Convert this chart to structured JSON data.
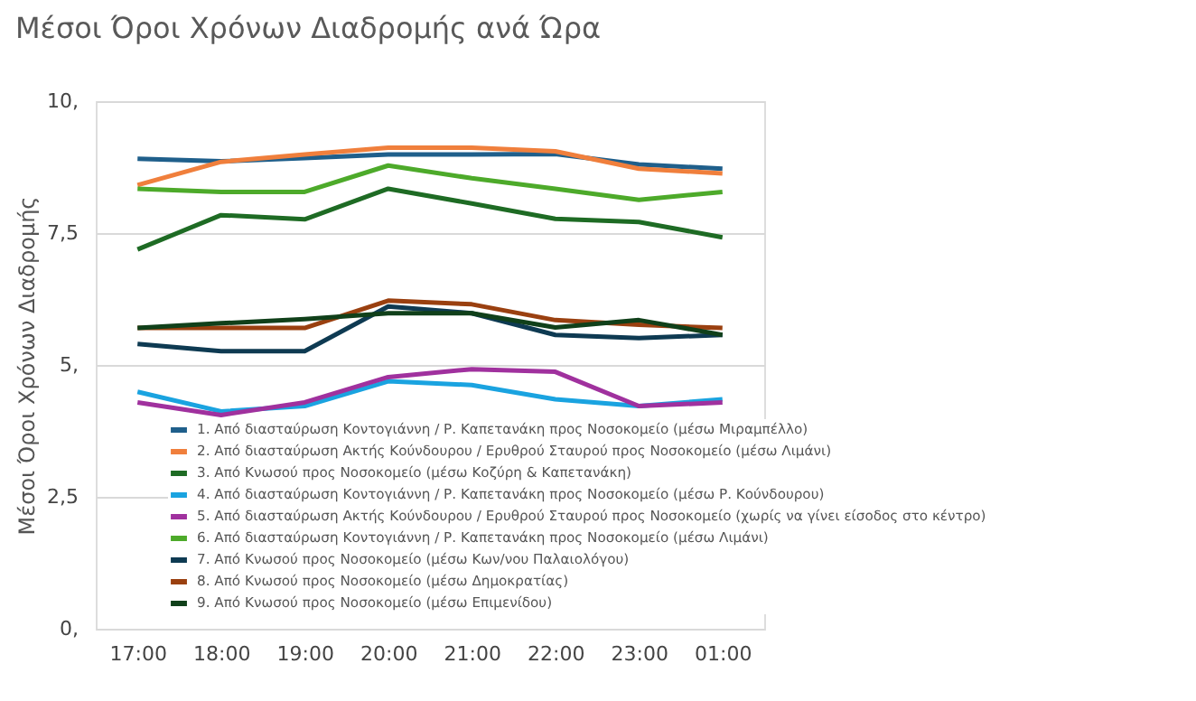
{
  "chart_data": {
    "type": "line",
    "title": "Μέσοι Όροι Χρόνων Διαδρομής ανά Ώρα",
    "ylabel": "Μέσοι Όροι Χρόνων Διαδρομής",
    "categories": [
      "17:00",
      "18:00",
      "19:00",
      "20:00",
      "21:00",
      "22:00",
      "23:00",
      "01:00"
    ],
    "ylim": [
      0,
      10
    ],
    "yticks": [
      {
        "value": 0,
        "label": "0,"
      },
      {
        "value": 2.5,
        "label": "2,5"
      },
      {
        "value": 5,
        "label": "5,"
      },
      {
        "value": 7.5,
        "label": "7,5"
      },
      {
        "value": 10,
        "label": "10,"
      }
    ],
    "grid": "y",
    "legend": "bottom",
    "marker": "none",
    "line_style": "solid",
    "series": [
      {
        "name": "1. Από διασταύρωση Κοντογιάννη / Ρ. Καπετανάκη προς Νοσοκομείο (μέσω Μιραμπέλλο)",
        "color": "#1f5f8b",
        "values": [
          8.91,
          8.86,
          8.92,
          8.99,
          8.99,
          9.0,
          8.8,
          8.72
        ]
      },
      {
        "name": "2. Από διασταύρωση Ακτής Κούνδουρου / Ερυθρού Σταυρού προς Νοσοκομείο (μέσω Λιμάνι)",
        "color": "#f07f3c",
        "values": [
          8.41,
          8.85,
          8.99,
          9.12,
          9.12,
          9.05,
          8.72,
          8.63
        ]
      },
      {
        "name": "3. Από Κνωσού προς Νοσοκομείο (μέσω Κοζύρη & Καπετανάκη)",
        "color": "#1e6b24",
        "values": [
          7.19,
          7.84,
          7.76,
          8.34,
          8.06,
          7.77,
          7.71,
          7.42
        ]
      },
      {
        "name": "4. Από διασταύρωση Κοντογιάννη / Ρ. Καπετανάκη προς Νοσοκομείο (μέσω Ρ. Κούνδουρου)",
        "color": "#1aa3e0",
        "values": [
          4.49,
          4.12,
          4.22,
          4.69,
          4.62,
          4.35,
          4.22,
          4.35
        ]
      },
      {
        "name": "5. Από διασταύρωση Ακτής Κούνδουρου / Ερυθρού Σταυρού προς Νοσοκομείο (χωρίς να γίνει είσοδος στο κέντρο)",
        "color": "#a0319e",
        "values": [
          4.29,
          4.05,
          4.29,
          4.77,
          4.92,
          4.87,
          4.22,
          4.29
        ]
      },
      {
        "name": "6. Από διασταύρωση Κοντογιάννη / Ρ. Καπετανάκη προς Νοσοκομείο (μέσω Λιμάνι)",
        "color": "#4daa2a",
        "values": [
          8.34,
          8.28,
          8.28,
          8.78,
          8.54,
          8.34,
          8.13,
          8.28
        ]
      },
      {
        "name": "7. Από Κνωσού προς Νοσοκομείο (μέσω Κων/νου Παλαιολόγου)",
        "color": "#0e3a52",
        "values": [
          5.4,
          5.26,
          5.26,
          6.11,
          5.98,
          5.57,
          5.51,
          5.57
        ]
      },
      {
        "name": "8. Από Κνωσού προς Νοσοκομείο (μέσω Δημοκρατίας)",
        "color": "#9a4010",
        "values": [
          5.7,
          5.7,
          5.7,
          6.22,
          6.15,
          5.85,
          5.76,
          5.7
        ]
      },
      {
        "name": "9. Από Κνωσού προς Νοσοκομείο (μέσω Επιμενίδου)",
        "color": "#10401a",
        "values": [
          5.7,
          5.79,
          5.87,
          5.98,
          5.98,
          5.71,
          5.85,
          5.57
        ]
      }
    ]
  }
}
